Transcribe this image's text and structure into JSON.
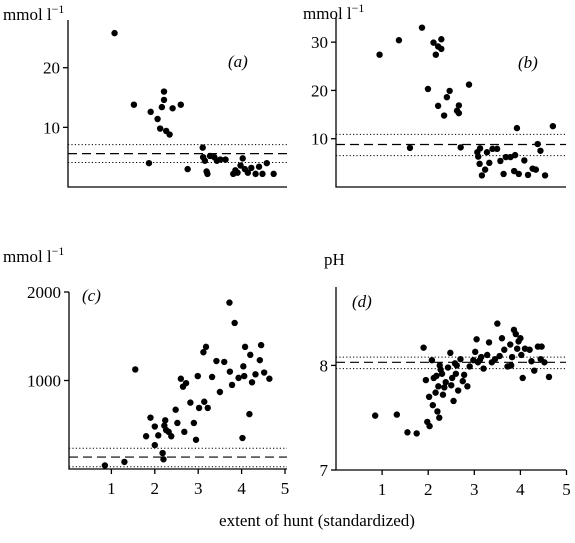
{
  "figure": {
    "xlabel": "extent of hunt (standardized)"
  },
  "chart_data": [
    {
      "id": "a",
      "type": "scatter",
      "panel_label": "(a)",
      "unit_label": "mmol l",
      "unit_superscript": "−1",
      "xlim": [
        0,
        5
      ],
      "ylim": [
        0,
        28
      ],
      "yticks": [
        10,
        20
      ],
      "xticks": [],
      "reference_lines": [
        {
          "style": "dotted",
          "y": 7.1
        },
        {
          "style": "dashed",
          "y": 5.6
        },
        {
          "style": "dotted",
          "y": 4.1
        }
      ],
      "points": [
        [
          0.92,
          25.8
        ],
        [
          1.37,
          13.8
        ],
        [
          1.72,
          4.0
        ],
        [
          1.76,
          12.6
        ],
        [
          1.92,
          11.4
        ],
        [
          1.98,
          9.8
        ],
        [
          2.02,
          13.4
        ],
        [
          2.07,
          16.0
        ],
        [
          2.07,
          14.6
        ],
        [
          2.12,
          9.4
        ],
        [
          2.2,
          8.8
        ],
        [
          2.27,
          13.2
        ],
        [
          2.46,
          13.8
        ],
        [
          2.62,
          3.0
        ],
        [
          2.97,
          6.6
        ],
        [
          2.98,
          5.0
        ],
        [
          3.02,
          4.4
        ],
        [
          3.06,
          2.6
        ],
        [
          3.08,
          2.2
        ],
        [
          3.14,
          5.2
        ],
        [
          3.24,
          5.0
        ],
        [
          3.3,
          4.4
        ],
        [
          3.38,
          4.6
        ],
        [
          3.5,
          4.6
        ],
        [
          3.68,
          2.2
        ],
        [
          3.73,
          2.8
        ],
        [
          3.78,
          2.4
        ],
        [
          3.85,
          3.6
        ],
        [
          3.9,
          4.8
        ],
        [
          3.95,
          3.0
        ],
        [
          4.02,
          2.4
        ],
        [
          4.1,
          3.2
        ],
        [
          4.2,
          2.2
        ],
        [
          4.28,
          3.4
        ],
        [
          4.36,
          2.2
        ],
        [
          4.46,
          4.0
        ],
        [
          4.62,
          2.2
        ]
      ]
    },
    {
      "id": "b",
      "type": "scatter",
      "panel_label": "(b)",
      "unit_label": "mmol l",
      "unit_superscript": "−1",
      "xlim": [
        0,
        5
      ],
      "ylim": [
        0,
        35
      ],
      "yticks": [
        10,
        20,
        30
      ],
      "xticks": [],
      "reference_lines": [
        {
          "style": "dotted",
          "y": 10.9
        },
        {
          "style": "dashed",
          "y": 8.8
        },
        {
          "style": "dotted",
          "y": 6.5
        }
      ],
      "points": [
        [
          0.88,
          27.4
        ],
        [
          1.3,
          30.4
        ],
        [
          1.54,
          8.1
        ],
        [
          1.8,
          33.0
        ],
        [
          1.93,
          20.3
        ],
        [
          2.05,
          29.9
        ],
        [
          2.1,
          27.4
        ],
        [
          2.15,
          16.8
        ],
        [
          2.15,
          29.1
        ],
        [
          2.22,
          30.6
        ],
        [
          2.22,
          28.6
        ],
        [
          2.28,
          14.8
        ],
        [
          2.34,
          18.6
        ],
        [
          2.4,
          19.9
        ],
        [
          2.56,
          15.8
        ],
        [
          2.6,
          16.9
        ],
        [
          2.6,
          15.3
        ],
        [
          2.64,
          8.2
        ],
        [
          2.82,
          21.2
        ],
        [
          3.0,
          7.2
        ],
        [
          3.02,
          6.3
        ],
        [
          3.05,
          4.8
        ],
        [
          3.06,
          8.0
        ],
        [
          3.1,
          2.4
        ],
        [
          3.17,
          3.6
        ],
        [
          3.21,
          7.2
        ],
        [
          3.26,
          5.0
        ],
        [
          3.33,
          7.9
        ],
        [
          3.43,
          7.9
        ],
        [
          3.5,
          5.4
        ],
        [
          3.57,
          2.7
        ],
        [
          3.62,
          6.2
        ],
        [
          3.72,
          6.2
        ],
        [
          3.8,
          3.3
        ],
        [
          3.82,
          6.6
        ],
        [
          3.86,
          12.2
        ],
        [
          3.9,
          2.7
        ],
        [
          4.02,
          5.5
        ],
        [
          4.1,
          2.5
        ],
        [
          4.2,
          3.8
        ],
        [
          4.27,
          3.6
        ],
        [
          4.31,
          8.9
        ],
        [
          4.37,
          7.5
        ],
        [
          4.47,
          2.4
        ],
        [
          4.64,
          12.6
        ]
      ]
    },
    {
      "id": "c",
      "type": "scatter",
      "panel_label": "(c)",
      "unit_label": "mmol l",
      "unit_superscript": "−1",
      "xlim": [
        0,
        5
      ],
      "ylim": [
        0,
        2000
      ],
      "yticks": [
        1000,
        2000
      ],
      "xticks": [
        1,
        2,
        3,
        4,
        5
      ],
      "reference_lines": [
        {
          "style": "dotted",
          "y": 235
        },
        {
          "style": "dashed",
          "y": 135
        },
        {
          "style": "dotted",
          "y": 25
        }
      ],
      "points": [
        [
          0.85,
          40
        ],
        [
          1.3,
          80
        ],
        [
          1.55,
          1125
        ],
        [
          1.8,
          370
        ],
        [
          1.9,
          580
        ],
        [
          2.0,
          270
        ],
        [
          2.0,
          480
        ],
        [
          2.08,
          380
        ],
        [
          2.18,
          180
        ],
        [
          2.2,
          110
        ],
        [
          2.22,
          490
        ],
        [
          2.24,
          550
        ],
        [
          2.26,
          440
        ],
        [
          2.32,
          420
        ],
        [
          2.38,
          370
        ],
        [
          2.48,
          670
        ],
        [
          2.52,
          520
        ],
        [
          2.6,
          1020
        ],
        [
          2.65,
          930
        ],
        [
          2.68,
          420
        ],
        [
          2.72,
          970
        ],
        [
          2.82,
          750
        ],
        [
          2.9,
          520
        ],
        [
          2.95,
          330
        ],
        [
          2.99,
          1050
        ],
        [
          3.02,
          690
        ],
        [
          3.12,
          1320
        ],
        [
          3.14,
          760
        ],
        [
          3.18,
          1380
        ],
        [
          3.22,
          690
        ],
        [
          3.32,
          1040
        ],
        [
          3.42,
          1220
        ],
        [
          3.5,
          870
        ],
        [
          3.6,
          1210
        ],
        [
          3.72,
          1880
        ],
        [
          3.73,
          1100
        ],
        [
          3.78,
          950
        ],
        [
          3.84,
          1650
        ],
        [
          3.93,
          1030
        ],
        [
          4.02,
          350
        ],
        [
          4.04,
          1160
        ],
        [
          4.06,
          1050
        ],
        [
          4.08,
          1380
        ],
        [
          4.18,
          620
        ],
        [
          4.2,
          1290
        ],
        [
          4.24,
          980
        ],
        [
          4.32,
          1070
        ],
        [
          4.42,
          1230
        ],
        [
          4.45,
          1400
        ],
        [
          4.52,
          1090
        ],
        [
          4.64,
          1020
        ]
      ]
    },
    {
      "id": "d",
      "type": "scatter",
      "panel_label": "(d)",
      "unit_label": "pH",
      "unit_superscript": "",
      "xlim": [
        0,
        5
      ],
      "ylim": [
        7,
        8.75
      ],
      "yticks": [
        7,
        8
      ],
      "xticks": [
        1,
        2,
        3,
        4,
        5
      ],
      "reference_lines": [
        {
          "style": "dotted",
          "y": 8.08
        },
        {
          "style": "dashed",
          "y": 8.03
        },
        {
          "style": "dotted",
          "y": 7.97
        }
      ],
      "points": [
        [
          0.85,
          7.52
        ],
        [
          1.32,
          7.53
        ],
        [
          1.55,
          7.36
        ],
        [
          1.75,
          7.35
        ],
        [
          1.9,
          8.17
        ],
        [
          1.95,
          7.86
        ],
        [
          1.98,
          7.46
        ],
        [
          2.02,
          7.7
        ],
        [
          2.03,
          7.42
        ],
        [
          2.08,
          8.05
        ],
        [
          2.1,
          7.62
        ],
        [
          2.12,
          7.88
        ],
        [
          2.16,
          7.74
        ],
        [
          2.18,
          7.9
        ],
        [
          2.2,
          7.56
        ],
        [
          2.22,
          7.8
        ],
        [
          2.24,
          7.5
        ],
        [
          2.25,
          8.0
        ],
        [
          2.27,
          7.96
        ],
        [
          2.3,
          7.92
        ],
        [
          2.32,
          7.72
        ],
        [
          2.35,
          7.79
        ],
        [
          2.38,
          7.84
        ],
        [
          2.43,
          7.98
        ],
        [
          2.48,
          8.12
        ],
        [
          2.5,
          7.81
        ],
        [
          2.52,
          7.88
        ],
        [
          2.55,
          7.66
        ],
        [
          2.58,
          8.02
        ],
        [
          2.6,
          7.92
        ],
        [
          2.62,
          8.0
        ],
        [
          2.65,
          7.76
        ],
        [
          2.7,
          8.06
        ],
        [
          2.75,
          7.85
        ],
        [
          2.78,
          7.91
        ],
        [
          2.85,
          7.8
        ],
        [
          2.9,
          7.99
        ],
        [
          2.98,
          8.05
        ],
        [
          3.02,
          8.13
        ],
        [
          3.05,
          8.25
        ],
        [
          3.08,
          8.03
        ],
        [
          3.12,
          8.05
        ],
        [
          3.15,
          8.08
        ],
        [
          3.2,
          7.97
        ],
        [
          3.28,
          8.1
        ],
        [
          3.32,
          8.22
        ],
        [
          3.38,
          8.03
        ],
        [
          3.45,
          8.06
        ],
        [
          3.5,
          8.4
        ],
        [
          3.55,
          8.09
        ],
        [
          3.6,
          8.26
        ],
        [
          3.65,
          8.15
        ],
        [
          3.72,
          7.99
        ],
        [
          3.78,
          8.2
        ],
        [
          3.8,
          8.0
        ],
        [
          3.82,
          8.08
        ],
        [
          3.86,
          8.34
        ],
        [
          3.9,
          8.3
        ],
        [
          3.93,
          8.16
        ],
        [
          3.96,
          8.23
        ],
        [
          4.0,
          8.26
        ],
        [
          4.02,
          8.1
        ],
        [
          4.05,
          7.88
        ],
        [
          4.1,
          8.16
        ],
        [
          4.2,
          8.15
        ],
        [
          4.24,
          8.04
        ],
        [
          4.3,
          7.95
        ],
        [
          4.38,
          8.18
        ],
        [
          4.44,
          8.06
        ],
        [
          4.46,
          8.18
        ],
        [
          4.52,
          8.03
        ],
        [
          4.62,
          7.89
        ]
      ]
    }
  ]
}
